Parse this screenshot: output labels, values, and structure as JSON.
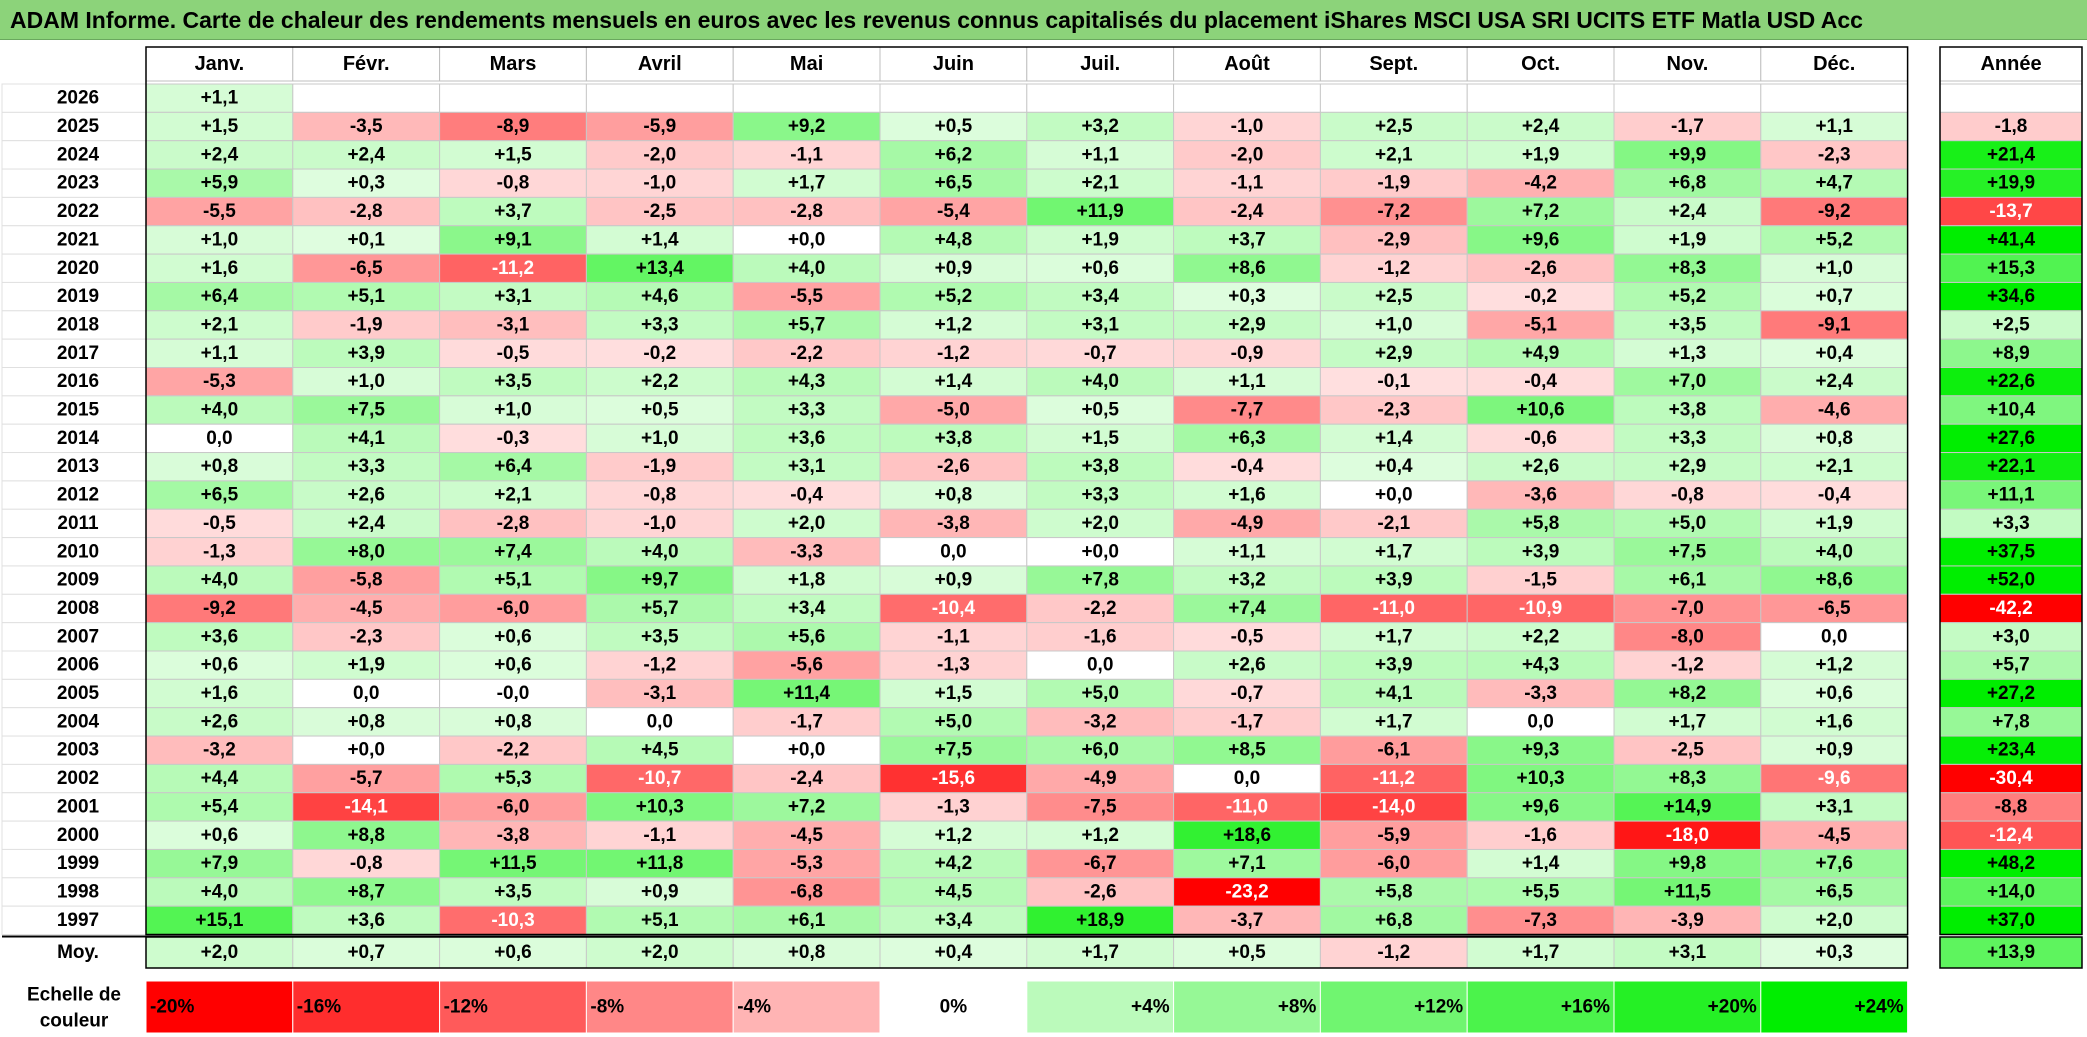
{
  "title": "ADAM Informe. Carte de chaleur des rendements mensuels en euros avec les revenus connus capitalisés du placement iShares MSCI USA SRI UCITS ETF Matla USD Acc",
  "chart_data": {
    "type": "heatmap",
    "title": "ADAM Informe. Carte de chaleur des rendements mensuels en euros avec les revenus connus capitalisés du placement iShares MSCI USA SRI UCITS ETF Matla USD Acc",
    "columns": [
      "Janv.",
      "Févr.",
      "Mars",
      "Avril",
      "Mai",
      "Juin",
      "Juil.",
      "Août",
      "Sept.",
      "Oct.",
      "Nov.",
      "Déc."
    ],
    "year_column_label": "Année",
    "rows": [
      {
        "year": "2026",
        "months": [
          "+1,1",
          "",
          "",
          "",
          "",
          "",
          "",
          "",
          "",
          "",
          "",
          ""
        ],
        "annual": ""
      },
      {
        "year": "2025",
        "months": [
          "+1,5",
          "-3,5",
          "-8,9",
          "-5,9",
          "+9,2",
          "+0,5",
          "+3,2",
          "-1,0",
          "+2,5",
          "+2,4",
          "-1,7",
          "+1,1"
        ],
        "annual": "-1,8"
      },
      {
        "year": "2024",
        "months": [
          "+2,4",
          "+2,4",
          "+1,5",
          "-2,0",
          "-1,1",
          "+6,2",
          "+1,1",
          "-2,0",
          "+2,1",
          "+1,9",
          "+9,9",
          "-2,3"
        ],
        "annual": "+21,4"
      },
      {
        "year": "2023",
        "months": [
          "+5,9",
          "+0,3",
          "-0,8",
          "-1,0",
          "+1,7",
          "+6,5",
          "+2,1",
          "-1,1",
          "-1,9",
          "-4,2",
          "+6,8",
          "+4,7"
        ],
        "annual": "+19,9"
      },
      {
        "year": "2022",
        "months": [
          "-5,5",
          "-2,8",
          "+3,7",
          "-2,5",
          "-2,8",
          "-5,4",
          "+11,9",
          "-2,4",
          "-7,2",
          "+7,2",
          "+2,4",
          "-9,2"
        ],
        "annual": "-13,7"
      },
      {
        "year": "2021",
        "months": [
          "+1,0",
          "+0,1",
          "+9,1",
          "+1,4",
          "+0,0",
          "+4,8",
          "+1,9",
          "+3,7",
          "-2,9",
          "+9,6",
          "+1,9",
          "+5,2"
        ],
        "annual": "+41,4"
      },
      {
        "year": "2020",
        "months": [
          "+1,6",
          "-6,5",
          "-11,2",
          "+13,4",
          "+4,0",
          "+0,9",
          "+0,6",
          "+8,6",
          "-1,2",
          "-2,6",
          "+8,3",
          "+1,0"
        ],
        "annual": "+15,3"
      },
      {
        "year": "2019",
        "months": [
          "+6,4",
          "+5,1",
          "+3,1",
          "+4,6",
          "-5,5",
          "+5,2",
          "+3,4",
          "+0,3",
          "+2,5",
          "-0,2",
          "+5,2",
          "+0,7"
        ],
        "annual": "+34,6"
      },
      {
        "year": "2018",
        "months": [
          "+2,1",
          "-1,9",
          "-3,1",
          "+3,3",
          "+5,7",
          "+1,2",
          "+3,1",
          "+2,9",
          "+1,0",
          "-5,1",
          "+3,5",
          "-9,1"
        ],
        "annual": "+2,5"
      },
      {
        "year": "2017",
        "months": [
          "+1,1",
          "+3,9",
          "-0,5",
          "-0,2",
          "-2,2",
          "-1,2",
          "-0,7",
          "-0,9",
          "+2,9",
          "+4,9",
          "+1,3",
          "+0,4"
        ],
        "annual": "+8,9"
      },
      {
        "year": "2016",
        "months": [
          "-5,3",
          "+1,0",
          "+3,5",
          "+2,2",
          "+4,3",
          "+1,4",
          "+4,0",
          "+1,1",
          "-0,1",
          "-0,4",
          "+7,0",
          "+2,4"
        ],
        "annual": "+22,6"
      },
      {
        "year": "2015",
        "months": [
          "+4,0",
          "+7,5",
          "+1,0",
          "+0,5",
          "+3,3",
          "-5,0",
          "+0,5",
          "-7,7",
          "-2,3",
          "+10,6",
          "+3,8",
          "-4,6"
        ],
        "annual": "+10,4"
      },
      {
        "year": "2014",
        "months": [
          "0,0",
          "+4,1",
          "-0,3",
          "+1,0",
          "+3,6",
          "+3,8",
          "+1,5",
          "+6,3",
          "+1,4",
          "-0,6",
          "+3,3",
          "+0,8"
        ],
        "annual": "+27,6"
      },
      {
        "year": "2013",
        "months": [
          "+0,8",
          "+3,3",
          "+6,4",
          "-1,9",
          "+3,1",
          "-2,6",
          "+3,8",
          "-0,4",
          "+0,4",
          "+2,6",
          "+2,9",
          "+2,1"
        ],
        "annual": "+22,1"
      },
      {
        "year": "2012",
        "months": [
          "+6,5",
          "+2,6",
          "+2,1",
          "-0,8",
          "-0,4",
          "+0,8",
          "+3,3",
          "+1,6",
          "+0,0",
          "-3,6",
          "-0,8",
          "-0,4"
        ],
        "annual": "+11,1"
      },
      {
        "year": "2011",
        "months": [
          "-0,5",
          "+2,4",
          "-2,8",
          "-1,0",
          "+2,0",
          "-3,8",
          "+2,0",
          "-4,9",
          "-2,1",
          "+5,8",
          "+5,0",
          "+1,9"
        ],
        "annual": "+3,3"
      },
      {
        "year": "2010",
        "months": [
          "-1,3",
          "+8,0",
          "+7,4",
          "+4,0",
          "-3,3",
          "0,0",
          "+0,0",
          "+1,1",
          "+1,7",
          "+3,9",
          "+7,5",
          "+4,0"
        ],
        "annual": "+37,5"
      },
      {
        "year": "2009",
        "months": [
          "+4,0",
          "-5,8",
          "+5,1",
          "+9,7",
          "+1,8",
          "+0,9",
          "+7,8",
          "+3,2",
          "+3,9",
          "-1,5",
          "+6,1",
          "+8,6"
        ],
        "annual": "+52,0"
      },
      {
        "year": "2008",
        "months": [
          "-9,2",
          "-4,5",
          "-6,0",
          "+5,7",
          "+3,4",
          "-10,4",
          "-2,2",
          "+7,4",
          "-11,0",
          "-10,9",
          "-7,0",
          "-6,5"
        ],
        "annual": "-42,2"
      },
      {
        "year": "2007",
        "months": [
          "+3,6",
          "-2,3",
          "+0,6",
          "+3,5",
          "+5,6",
          "-1,1",
          "-1,6",
          "-0,5",
          "+1,7",
          "+2,2",
          "-8,0",
          "0,0"
        ],
        "annual": "+3,0"
      },
      {
        "year": "2006",
        "months": [
          "+0,6",
          "+1,9",
          "+0,6",
          "-1,2",
          "-5,6",
          "-1,3",
          "0,0",
          "+2,6",
          "+3,9",
          "+4,3",
          "-1,2",
          "+1,2"
        ],
        "annual": "+5,7"
      },
      {
        "year": "2005",
        "months": [
          "+1,6",
          "0,0",
          "-0,0",
          "-3,1",
          "+11,4",
          "+1,5",
          "+5,0",
          "-0,7",
          "+4,1",
          "-3,3",
          "+8,2",
          "+0,6"
        ],
        "annual": "+27,2"
      },
      {
        "year": "2004",
        "months": [
          "+2,6",
          "+0,8",
          "+0,8",
          "0,0",
          "-1,7",
          "+5,0",
          "-3,2",
          "-1,7",
          "+1,7",
          "0,0",
          "+1,7",
          "+1,6"
        ],
        "annual": "+7,8"
      },
      {
        "year": "2003",
        "months": [
          "-3,2",
          "+0,0",
          "-2,2",
          "+4,5",
          "+0,0",
          "+7,5",
          "+6,0",
          "+8,5",
          "-6,1",
          "+9,3",
          "-2,5",
          "+0,9"
        ],
        "annual": "+23,4"
      },
      {
        "year": "2002",
        "months": [
          "+4,4",
          "-5,7",
          "+5,3",
          "-10,7",
          "-2,4",
          "-15,6",
          "-4,9",
          "0,0",
          "-11,2",
          "+10,3",
          "+8,3",
          "-9,6"
        ],
        "annual": "-30,4"
      },
      {
        "year": "2001",
        "months": [
          "+5,4",
          "-14,1",
          "-6,0",
          "+10,3",
          "+7,2",
          "-1,3",
          "-7,5",
          "-11,0",
          "-14,0",
          "+9,6",
          "+14,9",
          "+3,1"
        ],
        "annual": "-8,8"
      },
      {
        "year": "2000",
        "months": [
          "+0,6",
          "+8,8",
          "-3,8",
          "-1,1",
          "-4,5",
          "+1,2",
          "+1,2",
          "+18,6",
          "-5,9",
          "-1,6",
          "-18,0",
          "-4,5"
        ],
        "annual": "-12,4"
      },
      {
        "year": "1999",
        "months": [
          "+7,9",
          "-0,8",
          "+11,5",
          "+11,8",
          "-5,3",
          "+4,2",
          "-6,7",
          "+7,1",
          "-6,0",
          "+1,4",
          "+9,8",
          "+7,6"
        ],
        "annual": "+48,2"
      },
      {
        "year": "1998",
        "months": [
          "+4,0",
          "+8,7",
          "+3,5",
          "+0,9",
          "-6,8",
          "+4,5",
          "-2,6",
          "-23,2",
          "+5,8",
          "+5,5",
          "+11,5",
          "+6,5"
        ],
        "annual": "+14,0"
      },
      {
        "year": "1997",
        "months": [
          "+15,1",
          "+3,6",
          "-10,3",
          "+5,1",
          "+6,1",
          "+3,4",
          "+18,9",
          "-3,7",
          "+6,8",
          "-7,3",
          "-3,9",
          "+2,0"
        ],
        "annual": "+37,0"
      }
    ],
    "average": {
      "label": "Moy.",
      "months": [
        "+2,0",
        "+0,7",
        "+0,6",
        "+2,0",
        "+0,8",
        "+0,4",
        "+1,7",
        "+0,5",
        "-1,2",
        "+1,7",
        "+3,1",
        "+0,3"
      ],
      "annual": "+13,9"
    },
    "legend": {
      "title_lines": [
        "Echelle de",
        "couleur"
      ],
      "stops": [
        {
          "label": "-20%",
          "value": -20
        },
        {
          "label": "-16%",
          "value": -16
        },
        {
          "label": "-12%",
          "value": -12
        },
        {
          "label": "-8%",
          "value": -8
        },
        {
          "label": "-4%",
          "value": -4
        },
        {
          "label": "0%",
          "value": 0
        },
        {
          "label": "+4%",
          "value": 4
        },
        {
          "label": "+8%",
          "value": 8
        },
        {
          "label": "+12%",
          "value": 12
        },
        {
          "label": "+16%",
          "value": 16
        },
        {
          "label": "+20%",
          "value": 20
        },
        {
          "label": "+24%",
          "value": 24
        }
      ]
    },
    "color_scale": {
      "min": -20,
      "max": 24,
      "negative": "#ff0000",
      "zero": "#ffffff",
      "positive": "#00ee00"
    }
  }
}
